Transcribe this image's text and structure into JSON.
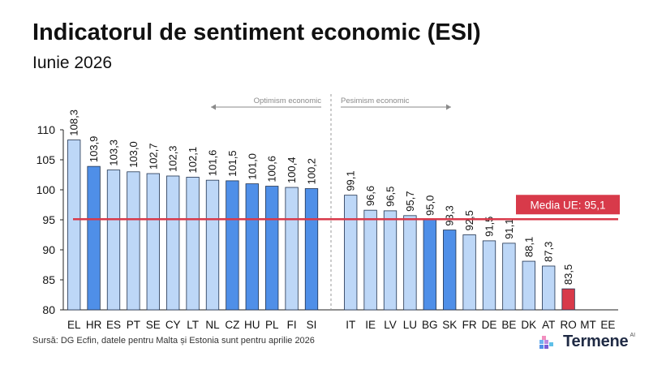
{
  "title": "Indicatorul de sentiment economic (ESI)",
  "subtitle": "Iunie 2026",
  "source": "Sursă: DG Ecfin, datele pentru Malta și Estonia sunt pentru aprilie 2026",
  "logo": {
    "text": "Termene",
    "suffix": "AI"
  },
  "colors": {
    "bar_light": "#bdd7f7",
    "bar_highlight": "#4f8fe8",
    "bar_ro": "#d83a4a",
    "bar_outline": "#20324f",
    "average_line": "#d83a4a",
    "separator": "#9a9a9a"
  },
  "chart_data": {
    "type": "bar",
    "categories": [
      "EL",
      "HR",
      "ES",
      "PT",
      "SE",
      "CY",
      "LT",
      "NL",
      "CZ",
      "HU",
      "PL",
      "FI",
      "SI",
      "IT",
      "IE",
      "LV",
      "LU",
      "BG",
      "SK",
      "FR",
      "DE",
      "BE",
      "DK",
      "AT",
      "RO",
      "MT",
      "EE"
    ],
    "values": [
      108.3,
      103.9,
      103.3,
      103.0,
      102.7,
      102.3,
      102.1,
      101.6,
      101.5,
      101.0,
      100.6,
      100.4,
      100.2,
      99.1,
      96.6,
      96.5,
      95.7,
      95.0,
      93.3,
      92.5,
      91.5,
      91.1,
      88.1,
      87.3,
      83.5,
      null,
      null
    ],
    "value_labels": [
      "108,3",
      "103,9",
      "103,3",
      "103,0",
      "102,7",
      "102,3",
      "102,1",
      "101,6",
      "101,5",
      "101,0",
      "100,6",
      "100,4",
      "100,2",
      "99,1",
      "96,6",
      "96,5",
      "95,7",
      "95,0",
      "93,3",
      "92,5",
      "91,5",
      "91,1",
      "88,1",
      "87,3",
      "83,5",
      "",
      ""
    ],
    "highlighted": [
      "HR",
      "CZ",
      "HU",
      "PL",
      "SI",
      "BG",
      "SK"
    ],
    "emphasized": [
      "RO"
    ],
    "ylim": [
      80,
      110
    ],
    "yticks": [
      80,
      85,
      90,
      95,
      100,
      105,
      110
    ],
    "grid": false,
    "average": {
      "value": 95.1,
      "label": "Media UE: 95,1"
    },
    "groups": [
      {
        "label": "Optimism economic",
        "direction": "left"
      },
      {
        "label": "Pesimism economic",
        "direction": "right"
      }
    ],
    "xlabel": "",
    "ylabel": ""
  }
}
